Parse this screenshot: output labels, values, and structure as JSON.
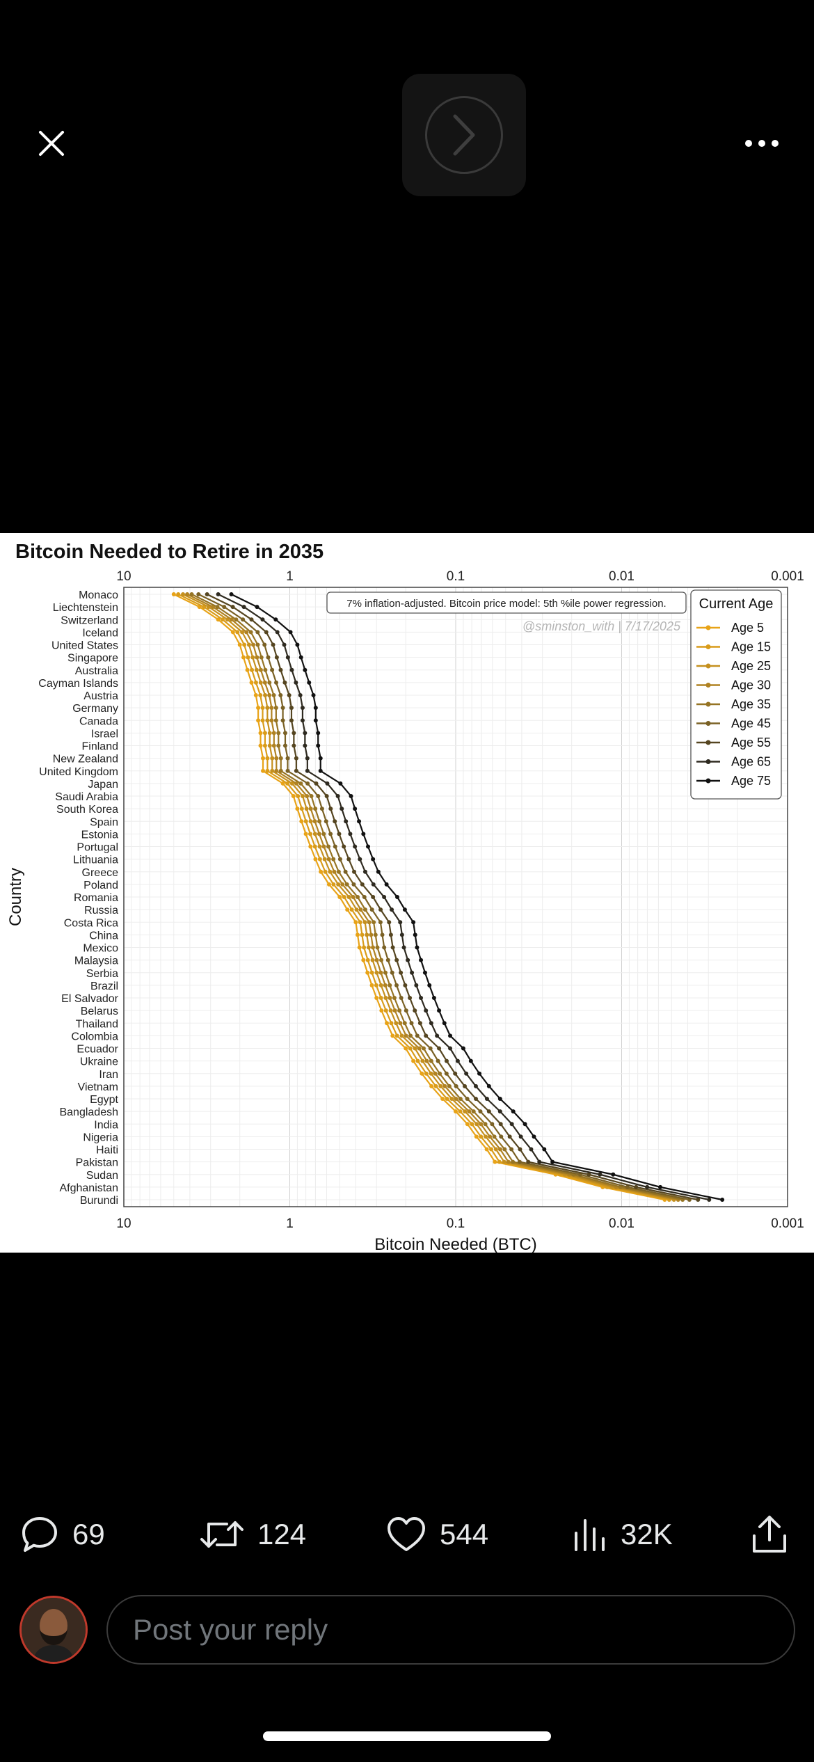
{
  "toolbar": {
    "close_icon": "close-icon",
    "more_icon": "more-icon"
  },
  "media_nav": {
    "icon": "chevron-right-icon"
  },
  "chart_data": {
    "type": "line",
    "title": "Bitcoin Needed to Retire in 2035",
    "xlabel": "Bitcoin Needed (BTC)",
    "ylabel": "Country",
    "x_scale": "log",
    "x_reversed": true,
    "xlim": [
      10,
      0.001
    ],
    "x_ticks": [
      "10",
      "1",
      "0.1",
      "0.01",
      "0.001"
    ],
    "grid": true,
    "annotation": "7% inflation-adjusted. Bitcoin price model: 5th %ile power regression.",
    "watermark": "@sminston_with  |  7/17/2025",
    "legend_title": "Current Age",
    "legend_position": "top-right",
    "categories": [
      "Monaco",
      "Liechtenstein",
      "Switzerland",
      "Iceland",
      "United States",
      "Singapore",
      "Australia",
      "Cayman Islands",
      "Austria",
      "Germany",
      "Canada",
      "Israel",
      "Finland",
      "New Zealand",
      "United Kingdom",
      "Japan",
      "Saudi Arabia",
      "South Korea",
      "Spain",
      "Estonia",
      "Portugal",
      "Lithuania",
      "Greece",
      "Poland",
      "Romania",
      "Russia",
      "Costa Rica",
      "China",
      "Mexico",
      "Malaysia",
      "Serbia",
      "Brazil",
      "El Salvador",
      "Belarus",
      "Thailand",
      "Colombia",
      "Ecuador",
      "Ukraine",
      "Iran",
      "Vietnam",
      "Egypt",
      "Bangladesh",
      "India",
      "Nigeria",
      "Haiti",
      "Pakistan",
      "Sudan",
      "Afghanistan",
      "Burundi"
    ],
    "base_values_age5": [
      5.0,
      3.5,
      2.7,
      2.2,
      2.0,
      1.9,
      1.8,
      1.7,
      1.6,
      1.55,
      1.55,
      1.5,
      1.5,
      1.45,
      1.45,
      1.1,
      0.95,
      0.9,
      0.85,
      0.8,
      0.75,
      0.7,
      0.65,
      0.58,
      0.5,
      0.45,
      0.4,
      0.39,
      0.38,
      0.36,
      0.34,
      0.32,
      0.3,
      0.28,
      0.26,
      0.24,
      0.2,
      0.18,
      0.16,
      0.14,
      0.12,
      0.1,
      0.085,
      0.075,
      0.065,
      0.058,
      0.025,
      0.013,
      0.0055
    ],
    "series": [
      {
        "name": "Age 5",
        "color": "#e8a317",
        "factor": 1.0
      },
      {
        "name": "Age 15",
        "color": "#d99c1a",
        "factor": 0.94
      },
      {
        "name": "Age 25",
        "color": "#c5901e",
        "factor": 0.88
      },
      {
        "name": "Age 30",
        "color": "#b08222",
        "factor": 0.83
      },
      {
        "name": "Age 35",
        "color": "#967424",
        "factor": 0.78
      },
      {
        "name": "Age 45",
        "color": "#7a6125",
        "factor": 0.71
      },
      {
        "name": "Age 55",
        "color": "#554520",
        "factor": 0.63
      },
      {
        "name": "Age 65",
        "color": "#2e2a20",
        "factor": 0.54
      },
      {
        "name": "Age 75",
        "color": "#111111",
        "factor": 0.45
      }
    ]
  },
  "actions": {
    "replies": {
      "count": "69",
      "icon": "reply-icon"
    },
    "reposts": {
      "count": "124",
      "icon": "repost-icon"
    },
    "likes": {
      "count": "544",
      "icon": "heart-icon"
    },
    "views": {
      "count": "32K",
      "icon": "views-icon"
    },
    "share": {
      "icon": "share-icon"
    }
  },
  "reply": {
    "placeholder": "Post your reply"
  }
}
